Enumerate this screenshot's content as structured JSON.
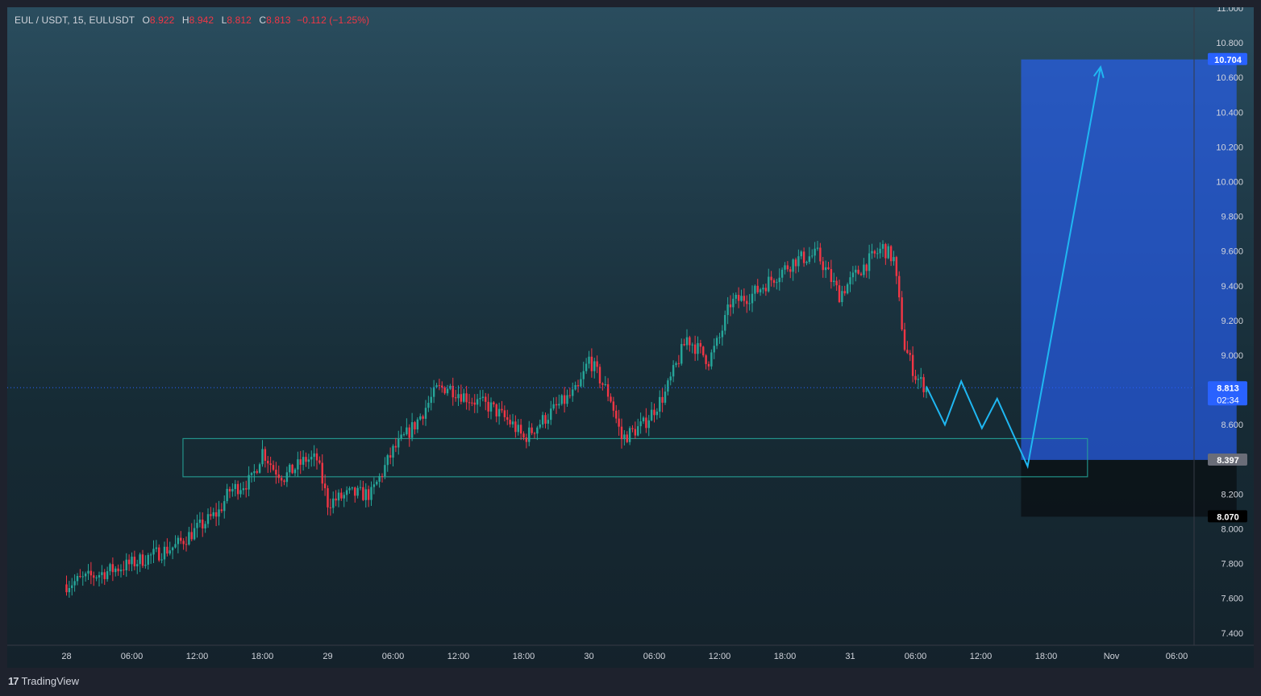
{
  "legend": {
    "symbol": "EUL / USDT, 15, EULUSDT",
    "o_label": "O",
    "o_value": "8.922",
    "h_label": "H",
    "h_value": "8.942",
    "l_label": "L",
    "l_value": "8.812",
    "c_label": "C",
    "c_value": "8.813",
    "change": "−0.112 (−1.25%)"
  },
  "branding": {
    "name": "TradingView"
  },
  "colors": {
    "up": "#26a69a",
    "down": "#f23645",
    "projection": "#1fb7f2",
    "zone": "#26a69a",
    "target_box": "#2962ff",
    "price_line": "#2962ff"
  },
  "chart_data": {
    "type": "candlestick",
    "symbol": "EULUSDT",
    "interval": "15",
    "ylim": [
      7.3,
      11.0
    ],
    "y_ticks": [
      "7.400",
      "7.600",
      "7.800",
      "8.000",
      "8.200",
      "8.400",
      "8.600",
      "8.800",
      "9.000",
      "9.200",
      "9.400",
      "9.600",
      "9.800",
      "10.000",
      "10.200",
      "10.400",
      "10.600",
      "10.800",
      "11.000"
    ],
    "x_ticks": [
      "28",
      "06:00",
      "12:00",
      "18:00",
      "29",
      "06:00",
      "12:00",
      "18:00",
      "30",
      "06:00",
      "12:00",
      "18:00",
      "31",
      "06:00",
      "12:00",
      "18:00",
      "Nov",
      "06:00"
    ],
    "price_path": [
      [
        0,
        7.68
      ],
      [
        6,
        7.8
      ],
      [
        10,
        7.9
      ],
      [
        11,
        7.95
      ],
      [
        14,
        8.1
      ],
      [
        15,
        8.22
      ],
      [
        17,
        8.28
      ],
      [
        18,
        8.45
      ],
      [
        19,
        8.35
      ],
      [
        20,
        8.3
      ],
      [
        22,
        8.4
      ],
      [
        23,
        8.4
      ],
      [
        24,
        8.15
      ],
      [
        26,
        8.2
      ],
      [
        28,
        8.2
      ],
      [
        30,
        8.45
      ],
      [
        32,
        8.6
      ],
      [
        34,
        8.8
      ],
      [
        35,
        8.82
      ],
      [
        37,
        8.75
      ],
      [
        39,
        8.7
      ],
      [
        41,
        8.6
      ],
      [
        42,
        8.52
      ],
      [
        45,
        8.7
      ],
      [
        47,
        8.8
      ],
      [
        48,
        8.98
      ],
      [
        50,
        8.75
      ],
      [
        51,
        8.52
      ],
      [
        53,
        8.6
      ],
      [
        55,
        8.78
      ],
      [
        57,
        9.1
      ],
      [
        59,
        8.97
      ],
      [
        60,
        9.1
      ],
      [
        61,
        9.3
      ],
      [
        63,
        9.35
      ],
      [
        65,
        9.45
      ],
      [
        67,
        9.55
      ],
      [
        69,
        9.58
      ],
      [
        71,
        9.35
      ],
      [
        73,
        9.5
      ],
      [
        75,
        9.62
      ],
      [
        76,
        9.55
      ],
      [
        77,
        9.05
      ],
      [
        78,
        8.88
      ],
      [
        79,
        8.81
      ]
    ],
    "last_price": "8.813",
    "countdown": "02:34",
    "zone": {
      "top": 8.52,
      "bottom": 8.3
    },
    "position": {
      "target": "10.704",
      "entry": "8.397",
      "stop": "8.070"
    },
    "projection_path": [
      [
        79,
        8.82
      ],
      [
        80.7,
        8.6
      ],
      [
        82.2,
        8.85
      ],
      [
        84.1,
        8.58
      ],
      [
        85.5,
        8.75
      ],
      [
        88.3,
        8.36
      ],
      [
        95,
        10.66
      ]
    ]
  }
}
